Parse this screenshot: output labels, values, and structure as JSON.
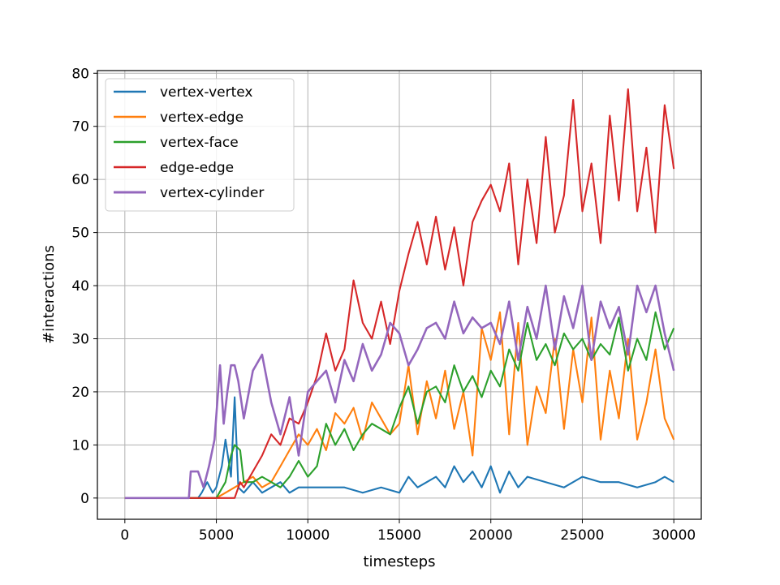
{
  "chart_data": {
    "type": "line",
    "title": "",
    "xlabel": "timesteps",
    "ylabel": "#interactions",
    "xlim": [
      -1500,
      31500
    ],
    "ylim": [
      -4,
      80.5
    ],
    "xticks": [
      0,
      5000,
      10000,
      15000,
      20000,
      25000,
      30000
    ],
    "xtick_labels": [
      "0",
      "5000",
      "10000",
      "15000",
      "20000",
      "25000",
      "30000"
    ],
    "yticks": [
      0,
      10,
      20,
      30,
      40,
      50,
      60,
      70,
      80
    ],
    "ytick_labels": [
      "0",
      "10",
      "20",
      "30",
      "40",
      "50",
      "60",
      "70",
      "80"
    ],
    "grid": true,
    "legend_position": "upper-left",
    "series": [
      {
        "name": "vertex-vertex",
        "color": "#1f77b4",
        "x": [
          0,
          3500,
          4000,
          4200,
          4500,
          4800,
          5000,
          5300,
          5500,
          5800,
          6000,
          6200,
          6500,
          7000,
          7500,
          8000,
          8500,
          9000,
          9500,
          10000,
          11000,
          12000,
          13000,
          14000,
          15000,
          15500,
          16000,
          16500,
          17000,
          17500,
          18000,
          18500,
          19000,
          19500,
          20000,
          20500,
          21000,
          21500,
          22000,
          23000,
          24000,
          25000,
          26000,
          27000,
          28000,
          29000,
          29500,
          30000
        ],
        "y": [
          0,
          0,
          0,
          1,
          3,
          1,
          2,
          6,
          11,
          4,
          19,
          2,
          1,
          3,
          1,
          2,
          3,
          1,
          2,
          2,
          2,
          2,
          1,
          2,
          1,
          4,
          2,
          3,
          4,
          2,
          6,
          3,
          5,
          2,
          6,
          1,
          5,
          2,
          4,
          3,
          2,
          4,
          3,
          3,
          2,
          3,
          4,
          3
        ]
      },
      {
        "name": "vertex-edge",
        "color": "#ff7f0e",
        "x": [
          0,
          3500,
          5000,
          5500,
          6000,
          6500,
          7000,
          7500,
          8000,
          8500,
          9000,
          9500,
          10000,
          10500,
          11000,
          11500,
          12000,
          12500,
          13000,
          13500,
          14000,
          14500,
          15000,
          15500,
          16000,
          16500,
          17000,
          17500,
          18000,
          18500,
          19000,
          19500,
          20000,
          20500,
          21000,
          21500,
          22000,
          22500,
          23000,
          23500,
          24000,
          24500,
          25000,
          25500,
          26000,
          26500,
          27000,
          27500,
          28000,
          28500,
          29000,
          29500,
          30000
        ],
        "y": [
          0,
          0,
          0,
          1,
          2,
          3,
          4,
          2,
          3,
          6,
          9,
          12,
          10,
          13,
          9,
          16,
          14,
          17,
          11,
          18,
          15,
          12,
          14,
          25,
          12,
          22,
          15,
          24,
          13,
          20,
          8,
          32,
          26,
          35,
          12,
          33,
          10,
          21,
          16,
          30,
          13,
          28,
          18,
          34,
          11,
          24,
          15,
          30,
          11,
          18,
          28,
          15,
          11
        ]
      },
      {
        "name": "vertex-face",
        "color": "#2ca02c",
        "x": [
          0,
          3500,
          5000,
          5500,
          5800,
          6000,
          6300,
          6500,
          7000,
          7500,
          8000,
          8500,
          9000,
          9500,
          10000,
          10500,
          11000,
          11500,
          12000,
          12500,
          13000,
          13500,
          14000,
          14500,
          15000,
          15500,
          16000,
          16500,
          17000,
          17500,
          18000,
          18500,
          19000,
          19500,
          20000,
          20500,
          21000,
          21500,
          22000,
          22500,
          23000,
          23500,
          24000,
          24500,
          25000,
          25500,
          26000,
          26500,
          27000,
          27500,
          28000,
          28500,
          29000,
          29500,
          30000
        ],
        "y": [
          0,
          0,
          0,
          3,
          8,
          10,
          9,
          3,
          3,
          4,
          3,
          2,
          4,
          7,
          4,
          6,
          14,
          10,
          13,
          9,
          12,
          14,
          13,
          12,
          17,
          21,
          14,
          20,
          21,
          18,
          25,
          20,
          23,
          19,
          24,
          21,
          28,
          24,
          33,
          26,
          29,
          25,
          31,
          28,
          30,
          26,
          29,
          27,
          34,
          24,
          30,
          26,
          35,
          28,
          32
        ]
      },
      {
        "name": "edge-edge",
        "color": "#d62728",
        "x": [
          0,
          6000,
          6300,
          6500,
          7000,
          7500,
          8000,
          8500,
          9000,
          9500,
          10000,
          10500,
          11000,
          11500,
          12000,
          12500,
          13000,
          13500,
          14000,
          14500,
          15000,
          15500,
          16000,
          16500,
          17000,
          17500,
          18000,
          18500,
          19000,
          19500,
          20000,
          20500,
          21000,
          21500,
          22000,
          22500,
          23000,
          23500,
          24000,
          24500,
          25000,
          25500,
          26000,
          26500,
          27000,
          27500,
          28000,
          28500,
          29000,
          29500,
          30000
        ],
        "y": [
          0,
          0,
          3,
          2,
          5,
          8,
          12,
          10,
          15,
          14,
          18,
          23,
          31,
          24,
          28,
          41,
          33,
          30,
          37,
          29,
          39,
          46,
          52,
          44,
          53,
          43,
          51,
          40,
          52,
          56,
          59,
          54,
          63,
          44,
          60,
          48,
          68,
          50,
          57,
          75,
          54,
          63,
          48,
          72,
          56,
          77,
          54,
          66,
          50,
          74,
          62
        ]
      },
      {
        "name": "vertex-cylinder",
        "color": "#9467bd",
        "x": [
          0,
          3500,
          3600,
          4000,
          4300,
          4600,
          4900,
          5200,
          5400,
          5600,
          5800,
          6000,
          6200,
          6500,
          7000,
          7500,
          8000,
          8500,
          9000,
          9500,
          10000,
          10500,
          11000,
          11500,
          12000,
          12500,
          13000,
          13500,
          14000,
          14500,
          15000,
          15500,
          16000,
          16500,
          17000,
          17500,
          18000,
          18500,
          19000,
          19500,
          20000,
          20500,
          21000,
          21500,
          22000,
          22500,
          23000,
          23500,
          24000,
          24500,
          25000,
          25500,
          26000,
          26500,
          27000,
          27500,
          28000,
          28500,
          29000,
          29500,
          30000
        ],
        "y": [
          0,
          0,
          5,
          5,
          2,
          6,
          11,
          25,
          14,
          20,
          25,
          25,
          22,
          15,
          24,
          27,
          18,
          12,
          19,
          8,
          20,
          22,
          24,
          18,
          26,
          22,
          29,
          24,
          27,
          33,
          31,
          25,
          28,
          32,
          33,
          30,
          37,
          31,
          34,
          32,
          33,
          29,
          37,
          26,
          36,
          30,
          40,
          28,
          38,
          32,
          40,
          26,
          37,
          32,
          36,
          27,
          40,
          35,
          40,
          31,
          24
        ]
      }
    ]
  }
}
